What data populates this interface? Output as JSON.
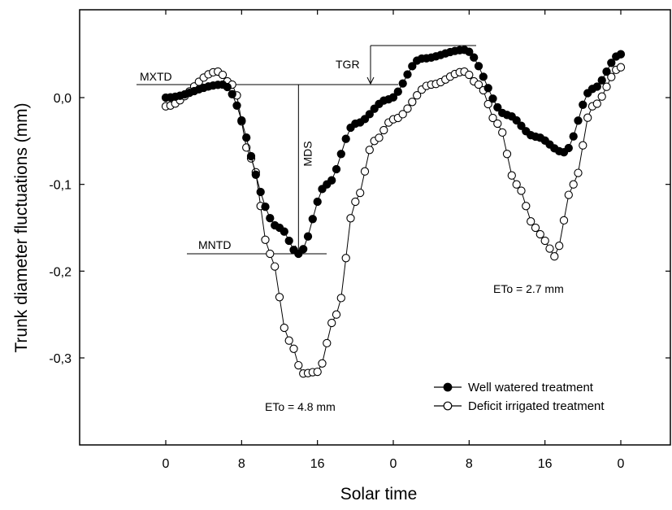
{
  "chart_data": {
    "type": "scatter",
    "xlabel": "Solar time",
    "ylabel": "Trunk diameter fluctuations (mm)",
    "x_unit": "hours (two consecutive days)",
    "xlim": [
      -6,
      60
    ],
    "ylim": [
      -0.4,
      0.08
    ],
    "x_ticks": [
      0,
      8,
      16,
      24,
      32,
      40,
      48
    ],
    "x_tick_labels": [
      "0",
      "8",
      "16",
      "0",
      "8",
      "16",
      "0"
    ],
    "y_ticks": [
      0.0,
      -0.1,
      -0.2,
      -0.3
    ],
    "y_tick_labels": [
      "0,0",
      "-0,1",
      "-0,2",
      "-0,3"
    ],
    "legend": {
      "position": "bottom-right",
      "entries": [
        "Well  watered treatment",
        "Deficit irrigated treatment"
      ]
    },
    "series": [
      {
        "name": "Well  watered treatment",
        "marker": "filled-circle",
        "x": [
          0,
          6,
          12,
          14,
          17,
          20,
          23.5,
          27,
          31.5,
          36,
          39,
          42,
          45,
          48
        ],
        "y": [
          0.0,
          0.015,
          -0.15,
          -0.18,
          -0.1,
          -0.03,
          -0.002,
          0.045,
          0.055,
          -0.02,
          -0.045,
          -0.063,
          0.01,
          0.05
        ]
      },
      {
        "name": "Deficit irrigated treatment",
        "marker": "open-circle",
        "x": [
          0,
          5.5,
          7,
          9,
          11,
          13,
          14.5,
          16,
          18,
          20,
          22,
          24,
          28,
          31.5,
          33,
          35,
          37,
          39,
          40,
          41,
          43,
          45,
          48
        ],
        "y": [
          -0.01,
          0.03,
          0.015,
          -0.07,
          -0.18,
          -0.28,
          -0.318,
          -0.316,
          -0.25,
          -0.12,
          -0.05,
          -0.025,
          0.015,
          0.03,
          0.015,
          -0.03,
          -0.1,
          -0.15,
          -0.165,
          -0.183,
          -0.1,
          -0.01,
          0.035
        ]
      }
    ],
    "annotations": {
      "mxtd": "MXTD",
      "mntd": "MNTD",
      "mds": "MDS",
      "tgr": "TGR",
      "eto1": "ETo = 4.8 mm",
      "eto2": "ETo = 2.7 mm"
    }
  }
}
